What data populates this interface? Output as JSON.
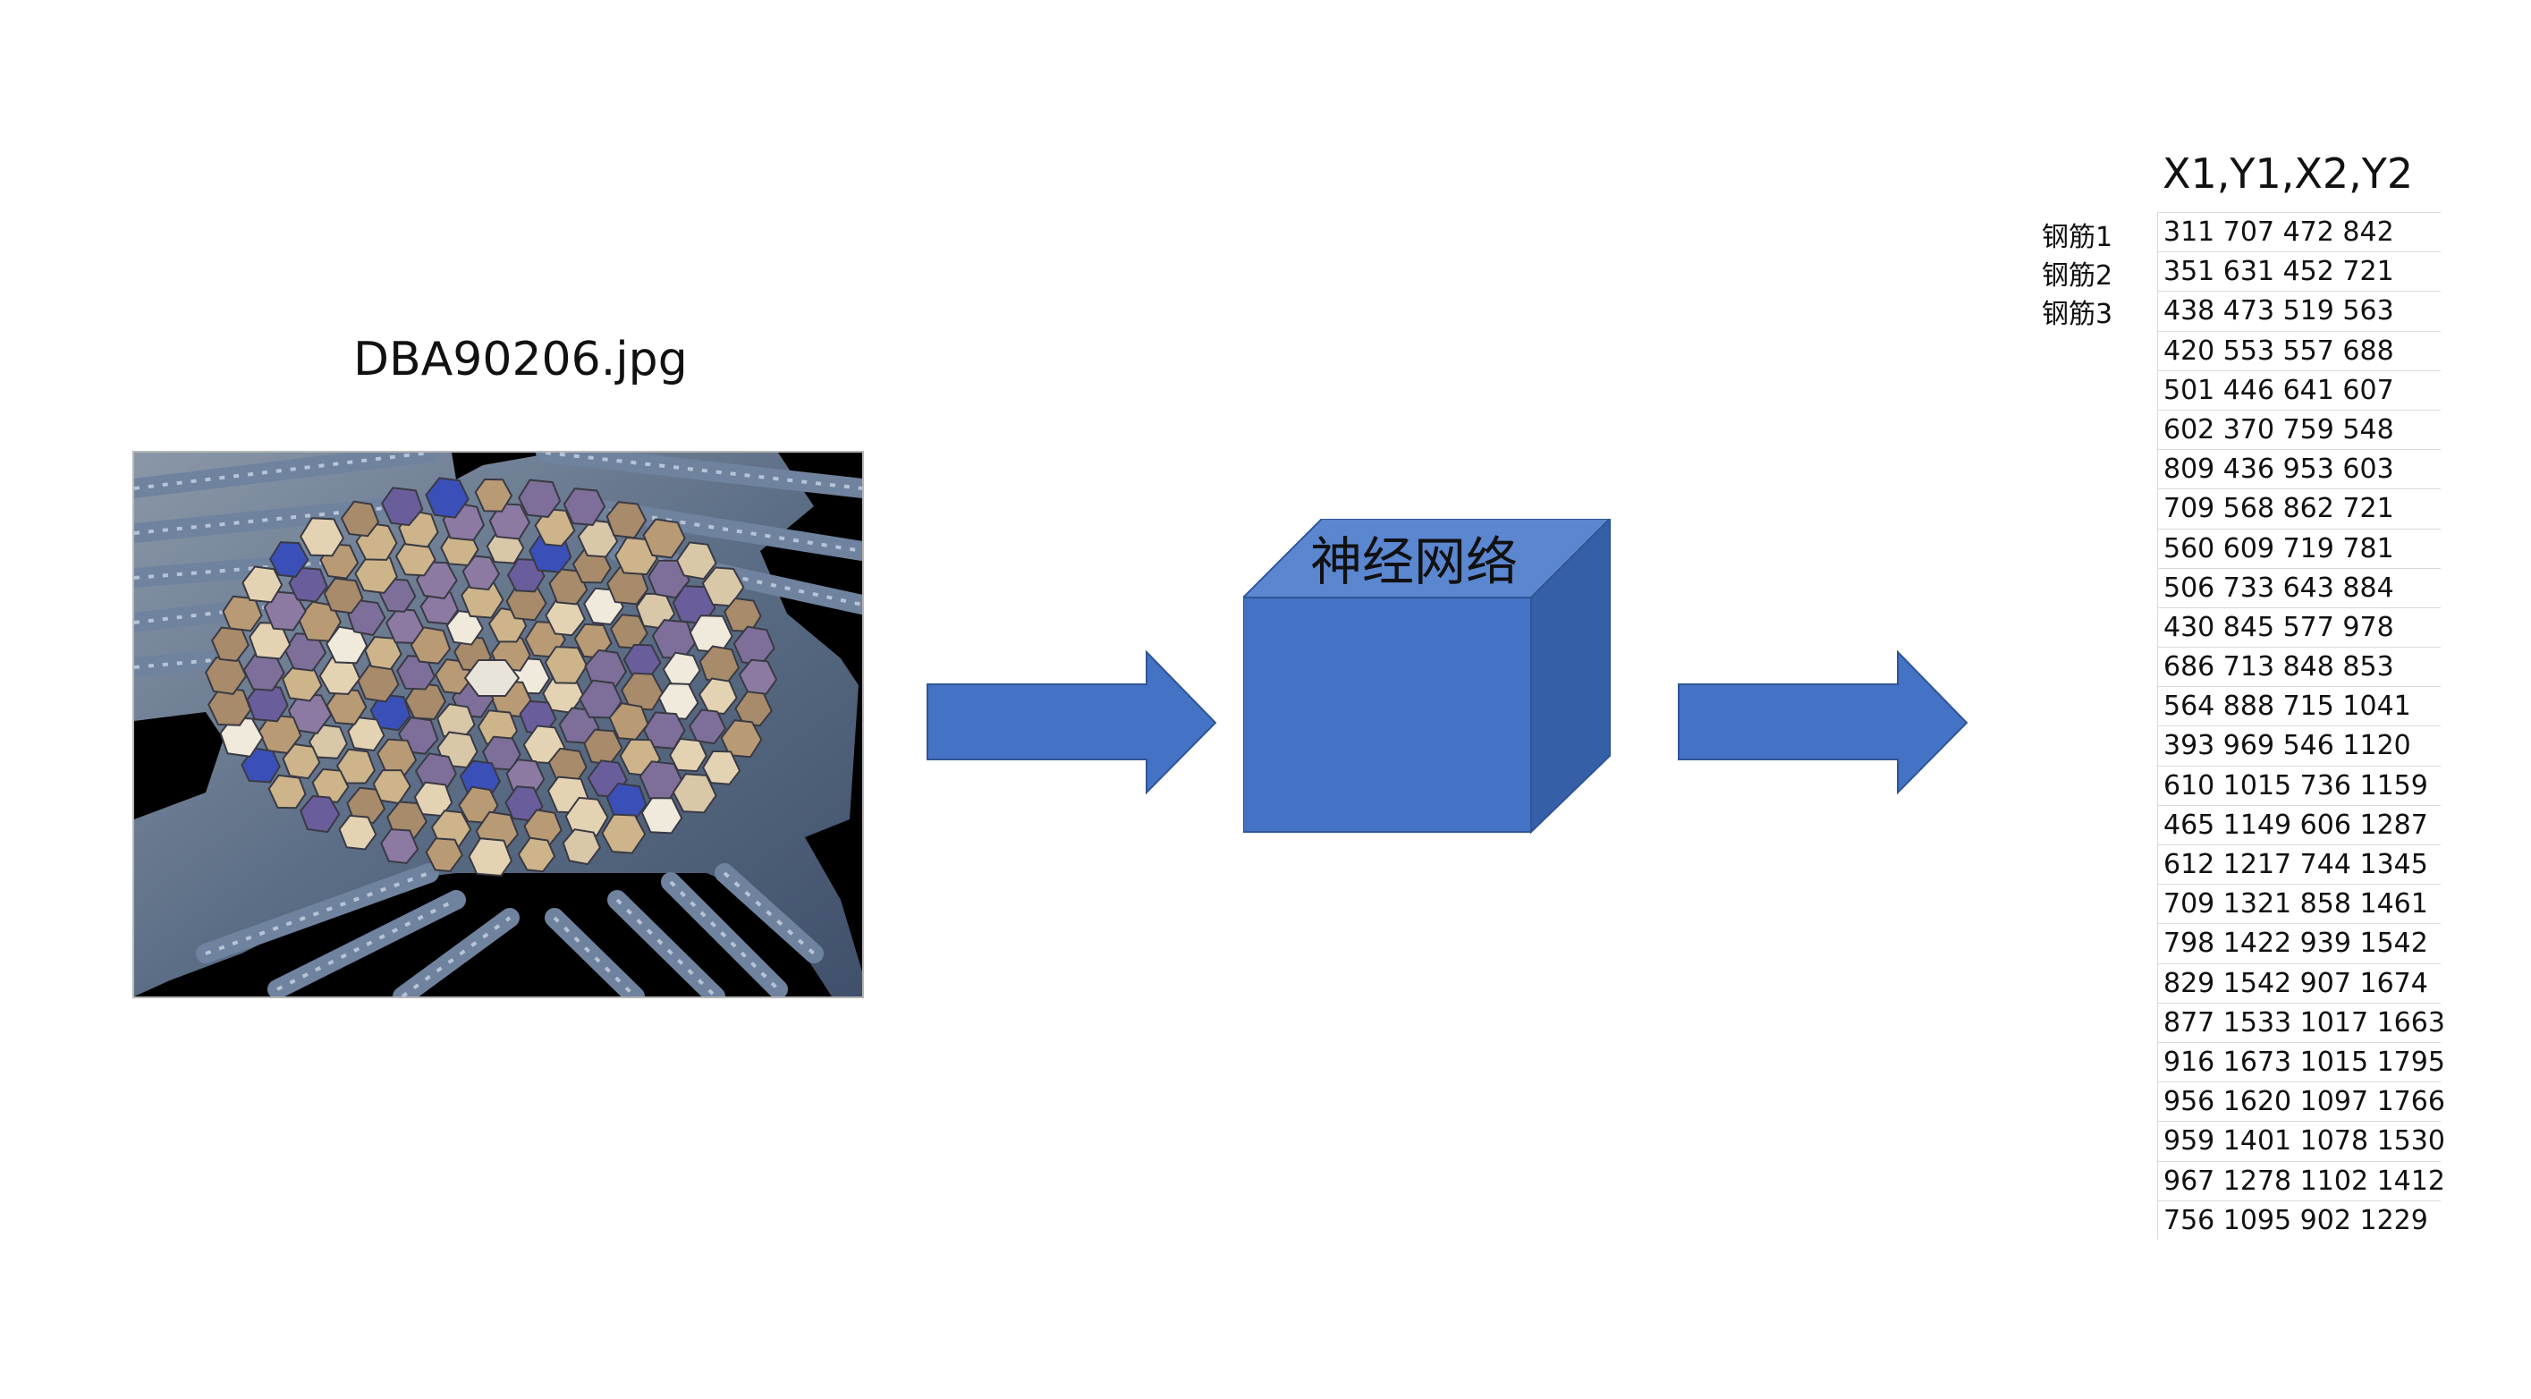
{
  "diagram": {
    "input": {
      "filename": "DBA90206.jpg",
      "image_description_icon": "rebar-bundle-photo"
    },
    "model": {
      "label": "神经网络"
    },
    "output": {
      "header": "X1,Y1,X2,Y2",
      "row_labels": [
        "钢筋1",
        "钢筋2",
        "钢筋3"
      ],
      "rows": [
        "311 707 472 842",
        "351 631 452 721",
        "438 473 519 563",
        "420 553 557 688",
        "501 446 641 607",
        "602 370 759 548",
        "809 436 953 603",
        "709 568 862 721",
        "560 609 719 781",
        "506 733 643 884",
        "430 845 577 978",
        "686 713 848 853",
        "564 888 715 1041",
        "393 969 546 1120",
        "610 1015 736 1159",
        "465 1149 606 1287",
        "612 1217 744 1345",
        "709 1321 858 1461",
        "798 1422 939 1542",
        "829 1542 907 1674",
        "877 1533 1017 1663",
        "916 1673 1015 1795",
        "956 1620 1097 1766",
        "959 1401 1078 1530",
        "967 1278 1102 1412",
        "756 1095 902 1229"
      ]
    },
    "colors": {
      "box_front": "#4472C4",
      "box_top": "#5B86D0",
      "box_side": "#3560A8",
      "arrow_fill": "#4472C4",
      "arrow_stroke": "#2F5597"
    }
  }
}
